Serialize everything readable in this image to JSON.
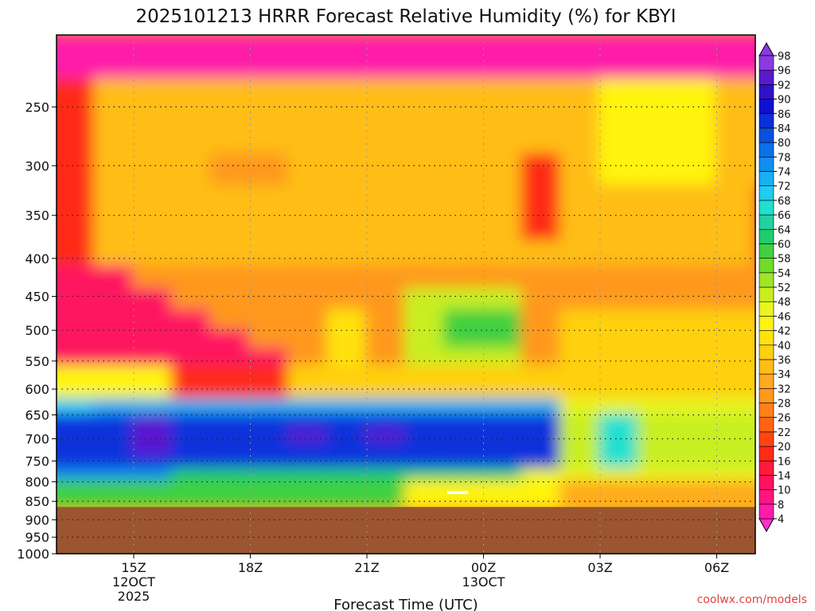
{
  "chart_data": {
    "type": "heatmap",
    "title": "2025101213 HRRR Forecast Relative Humidity (%) for KBYI",
    "xlabel": "Forecast Time (UTC)",
    "ylabel": "",
    "y_scale": "log",
    "y_axis": "pressure (reversed)",
    "y_ticks": [
      250,
      300,
      350,
      400,
      450,
      500,
      550,
      600,
      650,
      700,
      750,
      800,
      850,
      900,
      950,
      1000
    ],
    "ylim": [
      1000,
      200
    ],
    "x_ticks": [
      {
        "label": "15Z",
        "sub": [
          "12OCT",
          "2025"
        ]
      },
      {
        "label": "18Z",
        "sub": []
      },
      {
        "label": "21Z",
        "sub": []
      },
      {
        "label": "00Z",
        "sub": [
          "13OCT"
        ]
      },
      {
        "label": "03Z",
        "sub": []
      },
      {
        "label": "06Z",
        "sub": []
      }
    ],
    "grid": true,
    "ground_level_hPa": 865,
    "ground_color": "#9b5530",
    "colorbar": {
      "position": "right",
      "levels": [
        4,
        8,
        10,
        14,
        16,
        20,
        22,
        26,
        28,
        32,
        34,
        36,
        40,
        42,
        46,
        48,
        52,
        54,
        58,
        60,
        64,
        66,
        68,
        72,
        74,
        78,
        80,
        84,
        86,
        90,
        92,
        96,
        98
      ],
      "colors": [
        "#ff2fd0",
        "#ff1aa8",
        "#ff1480",
        "#ff1260",
        "#ff1a3c",
        "#ff2a18",
        "#ff4510",
        "#ff6414",
        "#ff8018",
        "#ff981c",
        "#ffaa1e",
        "#ffbd16",
        "#ffd010",
        "#ffe20c",
        "#fff410",
        "#e8f520",
        "#c8ef20",
        "#a0e528",
        "#70db28",
        "#40d040",
        "#20cc70",
        "#20d2a0",
        "#20e0d0",
        "#20ccf0",
        "#18b0f0",
        "#1090ee",
        "#0c70e8",
        "#0a50e0",
        "#0a30dc",
        "#1010d0",
        "#3010c8",
        "#5a18d0",
        "#8a3ae0"
      ]
    },
    "series_profile": {
      "description_pressure_hPa": [
        200,
        250,
        300,
        350,
        400,
        450,
        500,
        550,
        600,
        650,
        700,
        750,
        800,
        850,
        865
      ]
    }
  },
  "credit": "coolwx.com/models"
}
